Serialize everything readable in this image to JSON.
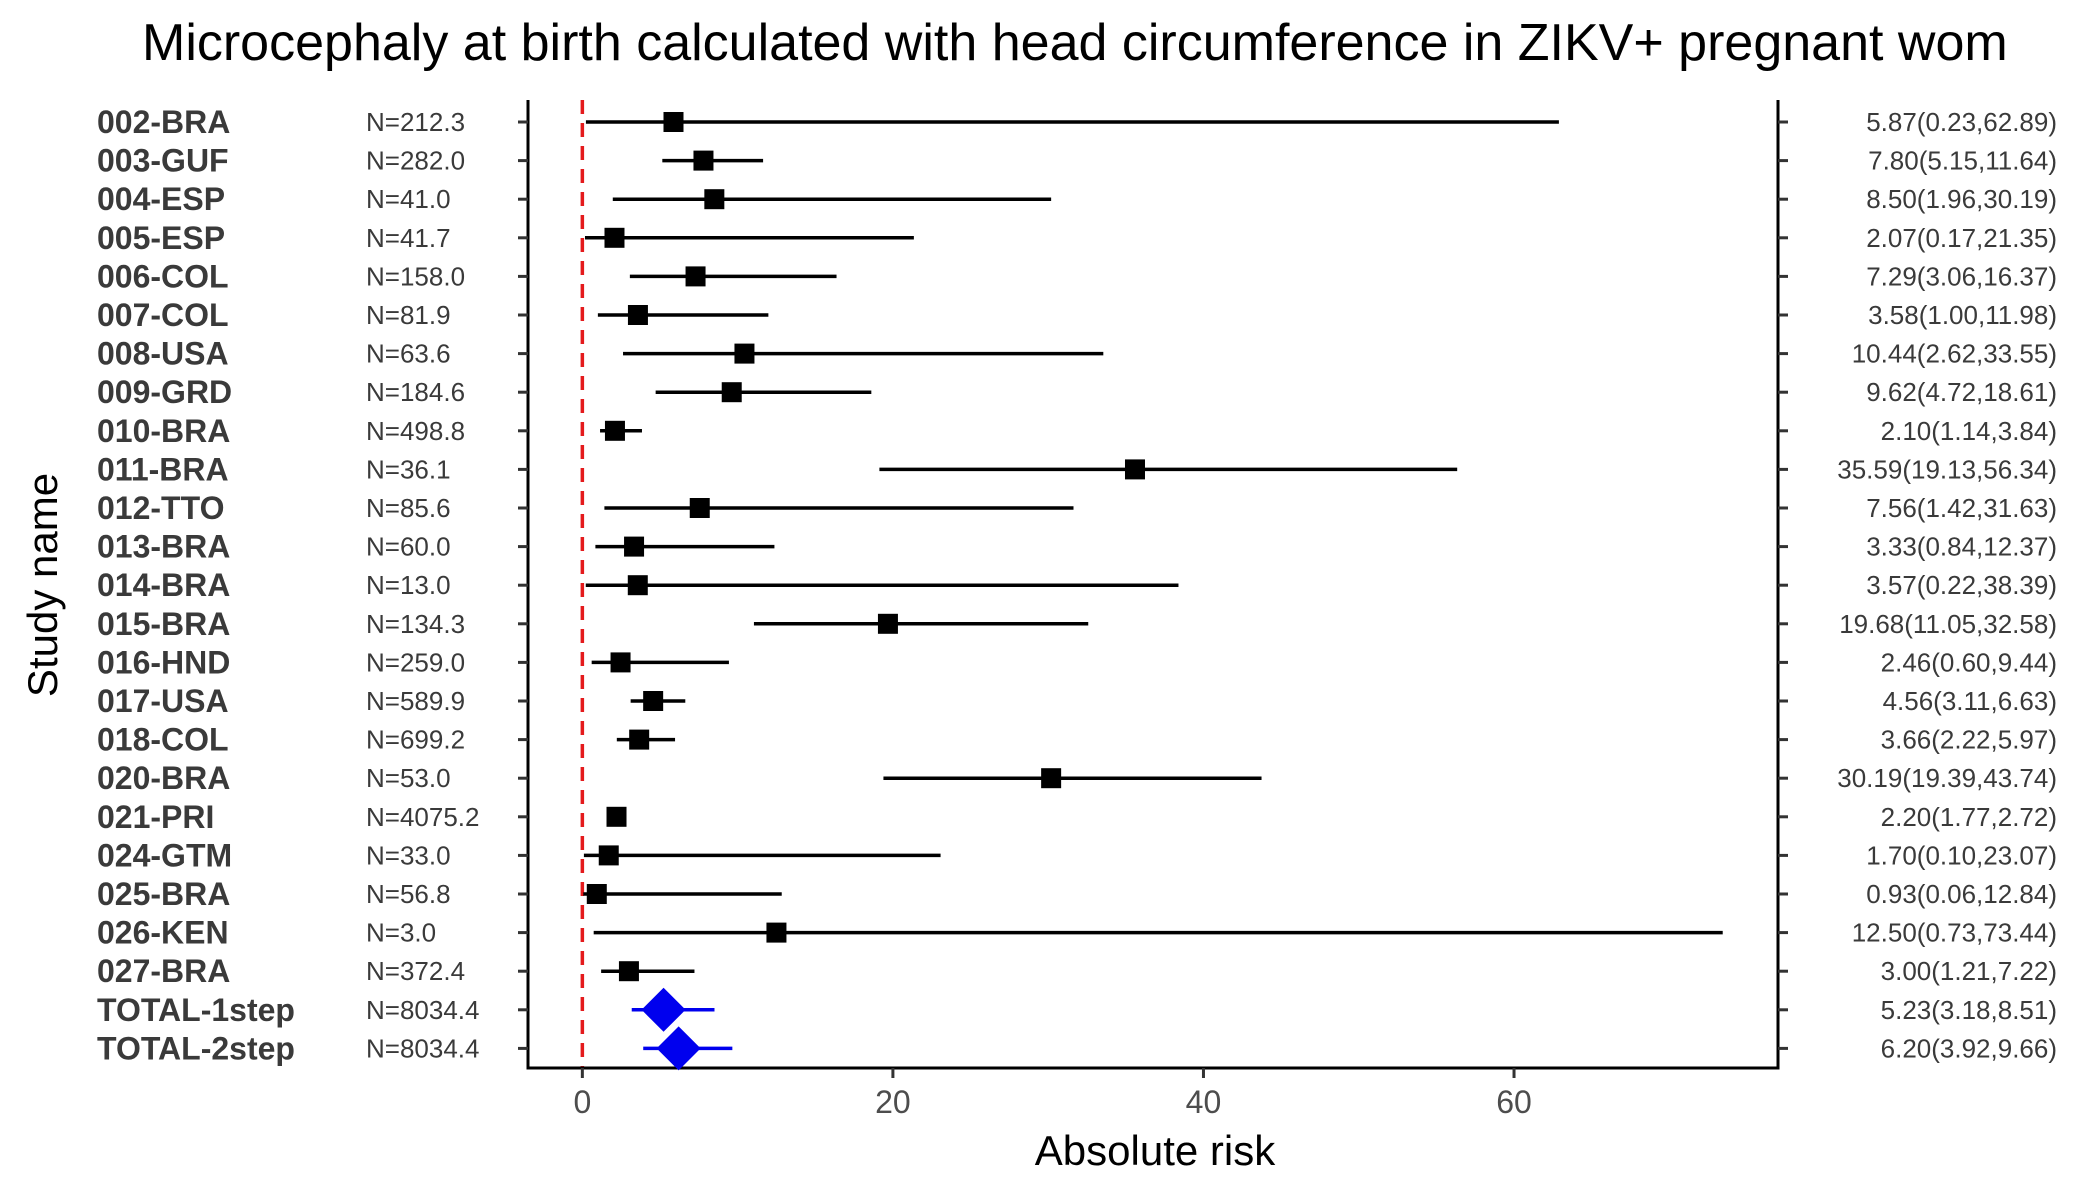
{
  "chart_data": {
    "type": "forest",
    "title": "Microcephaly at birth calculated with head circumference in ZIKV+ pregnant wom",
    "xlabel": "Absolute risk",
    "ylabel": "Study name",
    "xlim": [
      -3.5,
      77
    ],
    "xticks": [
      0,
      20,
      40,
      60
    ],
    "reference_line": 0,
    "colors": {
      "study": "#000000",
      "total": "#0000ee",
      "reference": "#e41a1c"
    },
    "studies": [
      {
        "name": "002-BRA",
        "n": "N=212.3",
        "ci_text": "5.87(0.23,62.89)",
        "est": 5.87,
        "lo": 0.23,
        "hi": 62.89,
        "total": false
      },
      {
        "name": "003-GUF",
        "n": "N=282.0",
        "ci_text": "7.80(5.15,11.64)",
        "est": 7.8,
        "lo": 5.15,
        "hi": 11.64,
        "total": false
      },
      {
        "name": "004-ESP",
        "n": "N=41.0",
        "ci_text": "8.50(1.96,30.19)",
        "est": 8.5,
        "lo": 1.96,
        "hi": 30.19,
        "total": false
      },
      {
        "name": "005-ESP",
        "n": "N=41.7",
        "ci_text": "2.07(0.17,21.35)",
        "est": 2.07,
        "lo": 0.17,
        "hi": 21.35,
        "total": false
      },
      {
        "name": "006-COL",
        "n": "N=158.0",
        "ci_text": "7.29(3.06,16.37)",
        "est": 7.29,
        "lo": 3.06,
        "hi": 16.37,
        "total": false
      },
      {
        "name": "007-COL",
        "n": "N=81.9",
        "ci_text": "3.58(1.00,11.98)",
        "est": 3.58,
        "lo": 1.0,
        "hi": 11.98,
        "total": false
      },
      {
        "name": "008-USA",
        "n": "N=63.6",
        "ci_text": "10.44(2.62,33.55)",
        "est": 10.44,
        "lo": 2.62,
        "hi": 33.55,
        "total": false
      },
      {
        "name": "009-GRD",
        "n": "N=184.6",
        "ci_text": "9.62(4.72,18.61)",
        "est": 9.62,
        "lo": 4.72,
        "hi": 18.61,
        "total": false
      },
      {
        "name": "010-BRA",
        "n": "N=498.8",
        "ci_text": "2.10(1.14,3.84)",
        "est": 2.1,
        "lo": 1.14,
        "hi": 3.84,
        "total": false
      },
      {
        "name": "011-BRA",
        "n": "N=36.1",
        "ci_text": "35.59(19.13,56.34)",
        "est": 35.59,
        "lo": 19.13,
        "hi": 56.34,
        "total": false
      },
      {
        "name": "012-TTO",
        "n": "N=85.6",
        "ci_text": "7.56(1.42,31.63)",
        "est": 7.56,
        "lo": 1.42,
        "hi": 31.63,
        "total": false
      },
      {
        "name": "013-BRA",
        "n": "N=60.0",
        "ci_text": "3.33(0.84,12.37)",
        "est": 3.33,
        "lo": 0.84,
        "hi": 12.37,
        "total": false
      },
      {
        "name": "014-BRA",
        "n": "N=13.0",
        "ci_text": "3.57(0.22,38.39)",
        "est": 3.57,
        "lo": 0.22,
        "hi": 38.39,
        "total": false
      },
      {
        "name": "015-BRA",
        "n": "N=134.3",
        "ci_text": "19.68(11.05,32.58)",
        "est": 19.68,
        "lo": 11.05,
        "hi": 32.58,
        "total": false
      },
      {
        "name": "016-HND",
        "n": "N=259.0",
        "ci_text": "2.46(0.60,9.44)",
        "est": 2.46,
        "lo": 0.6,
        "hi": 9.44,
        "total": false
      },
      {
        "name": "017-USA",
        "n": "N=589.9",
        "ci_text": "4.56(3.11,6.63)",
        "est": 4.56,
        "lo": 3.11,
        "hi": 6.63,
        "total": false
      },
      {
        "name": "018-COL",
        "n": "N=699.2",
        "ci_text": "3.66(2.22,5.97)",
        "est": 3.66,
        "lo": 2.22,
        "hi": 5.97,
        "total": false
      },
      {
        "name": "020-BRA",
        "n": "N=53.0",
        "ci_text": "30.19(19.39,43.74)",
        "est": 30.19,
        "lo": 19.39,
        "hi": 43.74,
        "total": false
      },
      {
        "name": "021-PRI",
        "n": "N=4075.2",
        "ci_text": "2.20(1.77,2.72)",
        "est": 2.2,
        "lo": 1.77,
        "hi": 2.72,
        "total": false
      },
      {
        "name": "024-GTM",
        "n": "N=33.0",
        "ci_text": "1.70(0.10,23.07)",
        "est": 1.7,
        "lo": 0.1,
        "hi": 23.07,
        "total": false
      },
      {
        "name": "025-BRA",
        "n": "N=56.8",
        "ci_text": "0.93(0.06,12.84)",
        "est": 0.93,
        "lo": 0.06,
        "hi": 12.84,
        "total": false
      },
      {
        "name": "026-KEN",
        "n": "N=3.0",
        "ci_text": "12.50(0.73,73.44)",
        "est": 12.5,
        "lo": 0.73,
        "hi": 73.44,
        "total": false
      },
      {
        "name": "027-BRA",
        "n": "N=372.4",
        "ci_text": "3.00(1.21,7.22)",
        "est": 3.0,
        "lo": 1.21,
        "hi": 7.22,
        "total": false
      },
      {
        "name": "TOTAL-1step",
        "n": "N=8034.4",
        "ci_text": "5.23(3.18,8.51)",
        "est": 5.23,
        "lo": 3.18,
        "hi": 8.51,
        "total": true
      },
      {
        "name": "TOTAL-2step",
        "n": "N=8034.4",
        "ci_text": "6.20(3.92,9.66)",
        "est": 6.2,
        "lo": 3.92,
        "hi": 9.66,
        "total": true
      }
    ]
  }
}
